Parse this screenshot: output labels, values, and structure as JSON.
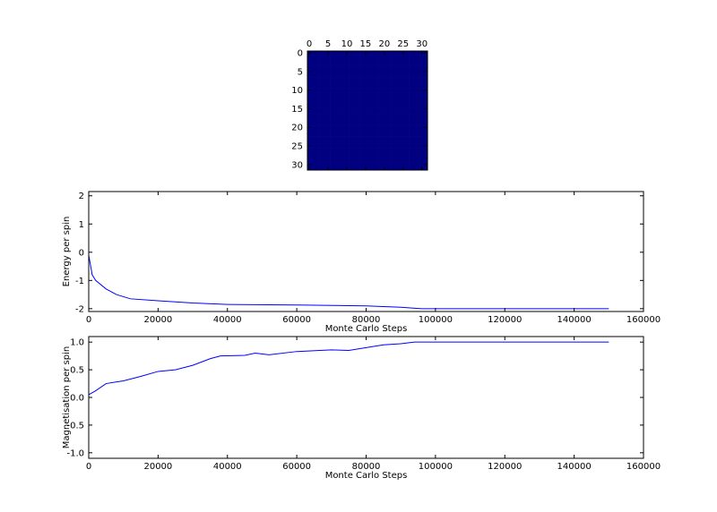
{
  "chart_data": [
    {
      "type": "heatmap",
      "color": "#000080",
      "xlim": [
        -0.5,
        31.5
      ],
      "ylim": [
        31.5,
        -0.5
      ],
      "xticks": [
        0,
        5,
        10,
        15,
        20,
        25,
        30
      ],
      "yticks": [
        0,
        5,
        10,
        15,
        20,
        25,
        30
      ],
      "values": [
        [
          1,
          1,
          1,
          1,
          1,
          1,
          1,
          1,
          1,
          1,
          1,
          1,
          1,
          1,
          1,
          1,
          1,
          1,
          1,
          1,
          1,
          1,
          1,
          1,
          1,
          1,
          1,
          1,
          1,
          1,
          1,
          1
        ],
        [
          1,
          1,
          1,
          1,
          1,
          1,
          1,
          1,
          1,
          1,
          1,
          1,
          1,
          1,
          1,
          1,
          1,
          1,
          1,
          1,
          1,
          1,
          1,
          1,
          1,
          1,
          1,
          1,
          1,
          1,
          1,
          1
        ],
        [
          1,
          1,
          1,
          1,
          1,
          1,
          1,
          1,
          1,
          1,
          1,
          1,
          1,
          1,
          1,
          1,
          1,
          1,
          1,
          1,
          1,
          1,
          1,
          1,
          1,
          1,
          1,
          1,
          1,
          1,
          1,
          1
        ],
        [
          1,
          1,
          1,
          1,
          1,
          1,
          1,
          1,
          1,
          1,
          1,
          1,
          1,
          1,
          1,
          1,
          1,
          1,
          1,
          1,
          1,
          1,
          1,
          1,
          1,
          1,
          1,
          1,
          1,
          1,
          1,
          1
        ],
        [
          1,
          1,
          1,
          1,
          1,
          1,
          1,
          1,
          1,
          1,
          1,
          1,
          1,
          1,
          1,
          1,
          1,
          1,
          1,
          1,
          1,
          1,
          1,
          1,
          1,
          1,
          1,
          1,
          1,
          1,
          1,
          1
        ],
        [
          1,
          1,
          1,
          1,
          1,
          1,
          1,
          1,
          1,
          1,
          1,
          1,
          1,
          1,
          1,
          1,
          1,
          1,
          1,
          1,
          1,
          1,
          1,
          1,
          1,
          1,
          1,
          1,
          1,
          1,
          1,
          1
        ],
        [
          1,
          1,
          1,
          1,
          1,
          1,
          1,
          1,
          1,
          1,
          1,
          1,
          1,
          1,
          1,
          1,
          1,
          1,
          1,
          1,
          1,
          1,
          1,
          1,
          1,
          1,
          1,
          1,
          1,
          1,
          1,
          1
        ],
        [
          1,
          1,
          1,
          1,
          1,
          1,
          1,
          1,
          1,
          1,
          1,
          1,
          1,
          1,
          1,
          1,
          1,
          1,
          1,
          1,
          1,
          1,
          1,
          1,
          1,
          1,
          1,
          1,
          1,
          1,
          1,
          1
        ],
        [
          1,
          1,
          1,
          1,
          1,
          1,
          1,
          1,
          1,
          1,
          1,
          1,
          1,
          1,
          1,
          1,
          1,
          1,
          1,
          1,
          1,
          1,
          1,
          1,
          1,
          1,
          1,
          1,
          1,
          1,
          1,
          1
        ],
        [
          1,
          1,
          1,
          1,
          1,
          1,
          1,
          1,
          1,
          1,
          1,
          1,
          1,
          1,
          1,
          1,
          1,
          1,
          1,
          1,
          1,
          1,
          1,
          1,
          1,
          1,
          1,
          1,
          1,
          1,
          1,
          1
        ],
        [
          1,
          1,
          1,
          1,
          1,
          1,
          1,
          1,
          1,
          1,
          1,
          1,
          1,
          1,
          1,
          1,
          1,
          1,
          1,
          1,
          1,
          1,
          1,
          1,
          1,
          1,
          1,
          1,
          1,
          1,
          1,
          1
        ],
        [
          1,
          1,
          1,
          1,
          1,
          1,
          1,
          1,
          1,
          1,
          1,
          1,
          1,
          1,
          1,
          1,
          1,
          1,
          1,
          1,
          1,
          1,
          1,
          1,
          1,
          1,
          1,
          1,
          1,
          1,
          1,
          1
        ],
        [
          1,
          1,
          1,
          1,
          1,
          1,
          1,
          1,
          1,
          1,
          1,
          1,
          1,
          1,
          1,
          1,
          1,
          1,
          1,
          1,
          1,
          1,
          1,
          1,
          1,
          1,
          1,
          1,
          1,
          1,
          1,
          1
        ],
        [
          1,
          1,
          1,
          1,
          1,
          1,
          1,
          1,
          1,
          1,
          1,
          1,
          1,
          1,
          1,
          1,
          1,
          1,
          1,
          1,
          1,
          1,
          1,
          1,
          1,
          1,
          1,
          1,
          1,
          1,
          1,
          1
        ],
        [
          1,
          1,
          1,
          1,
          1,
          1,
          1,
          1,
          1,
          1,
          1,
          1,
          1,
          1,
          1,
          1,
          1,
          1,
          1,
          1,
          1,
          1,
          1,
          1,
          1,
          1,
          1,
          1,
          1,
          1,
          1,
          1
        ],
        [
          1,
          1,
          1,
          1,
          1,
          1,
          1,
          1,
          1,
          1,
          1,
          1,
          1,
          1,
          1,
          1,
          1,
          1,
          1,
          1,
          1,
          1,
          1,
          1,
          1,
          1,
          1,
          1,
          1,
          1,
          1,
          1
        ],
        [
          1,
          1,
          1,
          1,
          1,
          1,
          1,
          1,
          1,
          1,
          1,
          1,
          1,
          1,
          1,
          1,
          1,
          1,
          1,
          1,
          1,
          1,
          1,
          1,
          1,
          1,
          1,
          1,
          1,
          1,
          1,
          1
        ],
        [
          1,
          1,
          1,
          1,
          1,
          1,
          1,
          1,
          1,
          1,
          1,
          1,
          1,
          1,
          1,
          1,
          1,
          1,
          1,
          1,
          1,
          1,
          1,
          1,
          1,
          1,
          1,
          1,
          1,
          1,
          1,
          1
        ],
        [
          1,
          1,
          1,
          1,
          1,
          1,
          1,
          1,
          1,
          1,
          1,
          1,
          1,
          1,
          1,
          1,
          1,
          1,
          1,
          1,
          1,
          1,
          1,
          1,
          1,
          1,
          1,
          1,
          1,
          1,
          1,
          1
        ],
        [
          1,
          1,
          1,
          1,
          1,
          1,
          1,
          1,
          1,
          1,
          1,
          1,
          1,
          1,
          1,
          1,
          1,
          1,
          1,
          1,
          1,
          1,
          1,
          1,
          1,
          1,
          1,
          1,
          1,
          1,
          1,
          1
        ],
        [
          1,
          1,
          1,
          1,
          1,
          1,
          1,
          1,
          1,
          1,
          1,
          1,
          1,
          1,
          1,
          1,
          1,
          1,
          1,
          1,
          1,
          1,
          1,
          1,
          1,
          1,
          1,
          1,
          1,
          1,
          1,
          1
        ],
        [
          1,
          1,
          1,
          1,
          1,
          1,
          1,
          1,
          1,
          1,
          1,
          1,
          1,
          1,
          1,
          1,
          1,
          1,
          1,
          1,
          1,
          1,
          1,
          1,
          1,
          1,
          1,
          1,
          1,
          1,
          1,
          1
        ],
        [
          1,
          1,
          1,
          1,
          1,
          1,
          1,
          1,
          1,
          1,
          1,
          1,
          1,
          1,
          1,
          1,
          1,
          1,
          1,
          1,
          1,
          1,
          1,
          1,
          1,
          1,
          1,
          1,
          1,
          1,
          1,
          1
        ],
        [
          1,
          1,
          1,
          1,
          1,
          1,
          1,
          1,
          1,
          1,
          1,
          1,
          1,
          1,
          1,
          1,
          1,
          1,
          1,
          1,
          1,
          1,
          1,
          1,
          1,
          1,
          1,
          1,
          1,
          1,
          1,
          1
        ],
        [
          1,
          1,
          1,
          1,
          1,
          1,
          1,
          1,
          1,
          1,
          1,
          1,
          1,
          1,
          1,
          1,
          1,
          1,
          1,
          1,
          1,
          1,
          1,
          1,
          1,
          1,
          1,
          1,
          1,
          1,
          1,
          1
        ],
        [
          1,
          1,
          1,
          1,
          1,
          1,
          1,
          1,
          1,
          1,
          1,
          1,
          1,
          1,
          1,
          1,
          1,
          1,
          1,
          1,
          1,
          1,
          1,
          1,
          1,
          1,
          1,
          1,
          1,
          1,
          1,
          1
        ],
        [
          1,
          1,
          1,
          1,
          1,
          1,
          1,
          1,
          1,
          1,
          1,
          1,
          1,
          1,
          1,
          1,
          1,
          1,
          1,
          1,
          1,
          1,
          1,
          1,
          1,
          1,
          1,
          1,
          1,
          1,
          1,
          1
        ],
        [
          1,
          1,
          1,
          1,
          1,
          1,
          1,
          1,
          1,
          1,
          1,
          1,
          1,
          1,
          1,
          1,
          1,
          1,
          1,
          1,
          1,
          1,
          1,
          1,
          1,
          1,
          1,
          1,
          1,
          1,
          1,
          1
        ],
        [
          1,
          1,
          1,
          1,
          1,
          1,
          1,
          1,
          1,
          1,
          1,
          1,
          1,
          1,
          1,
          1,
          1,
          1,
          1,
          1,
          1,
          1,
          1,
          1,
          1,
          1,
          1,
          1,
          1,
          1,
          1,
          1
        ],
        [
          1,
          1,
          1,
          1,
          1,
          1,
          1,
          1,
          1,
          1,
          1,
          1,
          1,
          1,
          1,
          1,
          1,
          1,
          1,
          1,
          1,
          1,
          1,
          1,
          1,
          1,
          1,
          1,
          1,
          1,
          1,
          1
        ],
        [
          1,
          1,
          1,
          1,
          1,
          1,
          1,
          1,
          1,
          1,
          1,
          1,
          1,
          1,
          1,
          1,
          1,
          1,
          1,
          1,
          1,
          1,
          1,
          1,
          1,
          1,
          1,
          1,
          1,
          1,
          1,
          1
        ],
        [
          1,
          1,
          1,
          1,
          1,
          1,
          1,
          1,
          1,
          1,
          1,
          1,
          1,
          1,
          1,
          1,
          1,
          1,
          1,
          1,
          1,
          1,
          1,
          1,
          1,
          1,
          1,
          1,
          1,
          1,
          1,
          1
        ]
      ]
    },
    {
      "type": "line",
      "x_label": "Monte Carlo Steps",
      "y_label": "Energy per spin",
      "color": "#0000ff",
      "xlim": [
        0,
        160000
      ],
      "ylim": [
        -2.1,
        2.15
      ],
      "xticks": [
        0,
        20000,
        40000,
        60000,
        80000,
        100000,
        120000,
        140000,
        160000
      ],
      "yticks": [
        -2,
        -1,
        0,
        1,
        2
      ],
      "x": [
        0,
        1000,
        2000,
        5000,
        8000,
        12000,
        20000,
        30000,
        40000,
        60000,
        80000,
        90000,
        96000,
        150000
      ],
      "values": [
        -0.1,
        -0.8,
        -1.0,
        -1.3,
        -1.5,
        -1.65,
        -1.72,
        -1.8,
        -1.85,
        -1.87,
        -1.9,
        -1.95,
        -2.0,
        -2.0
      ]
    },
    {
      "type": "line",
      "x_label": "Monte Carlo Steps",
      "y_label": "Magnetisation per spin",
      "color": "#0000ff",
      "xlim": [
        0,
        160000
      ],
      "ylim": [
        -1.1,
        1.1
      ],
      "xticks": [
        0,
        20000,
        40000,
        60000,
        80000,
        100000,
        120000,
        140000,
        160000
      ],
      "yticks": [
        {
          "value": -1,
          "label": "-1.0"
        },
        {
          "value": -0.5,
          "label": "-0.5"
        },
        {
          "value": 0,
          "label": "0.0"
        },
        {
          "value": 0.5,
          "label": "0.5"
        },
        {
          "value": 1,
          "label": "1.0"
        }
      ],
      "x": [
        0,
        2000,
        5000,
        10000,
        15000,
        20000,
        25000,
        30000,
        35000,
        38000,
        45000,
        48000,
        52000,
        60000,
        70000,
        75000,
        80000,
        85000,
        90000,
        94000,
        150000
      ],
      "values": [
        0.05,
        0.12,
        0.25,
        0.3,
        0.38,
        0.47,
        0.5,
        0.58,
        0.7,
        0.75,
        0.76,
        0.8,
        0.77,
        0.83,
        0.86,
        0.85,
        0.9,
        0.95,
        0.97,
        1.0,
        1.0
      ]
    }
  ]
}
